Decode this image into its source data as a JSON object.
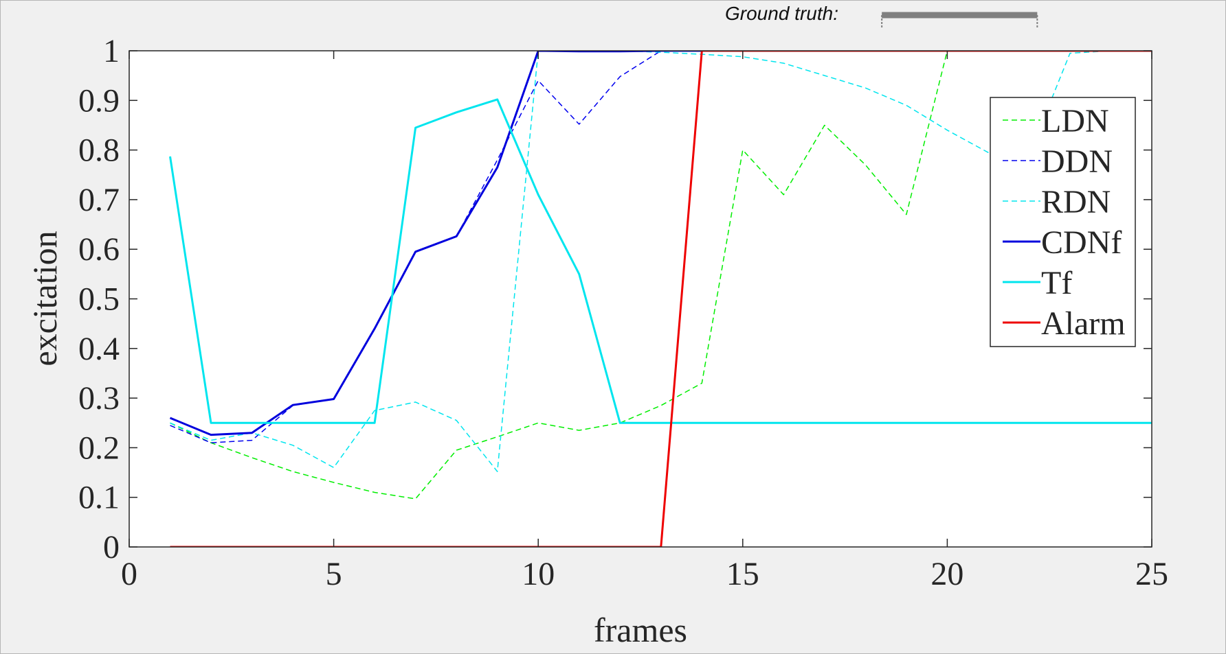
{
  "figure": {
    "ground_truth_label": "Ground truth:"
  },
  "chart_data": {
    "type": "line",
    "xlabel": "frames",
    "ylabel": "excitation",
    "xlim": [
      0,
      25
    ],
    "ylim": [
      0,
      1
    ],
    "xticks": [
      0,
      5,
      10,
      15,
      20,
      25
    ],
    "xtick_labels": [
      "0",
      "5",
      "10",
      "15",
      "20",
      "25"
    ],
    "yticks": [
      0,
      0.1,
      0.2,
      0.3,
      0.4,
      0.5,
      0.6,
      0.7,
      0.8,
      0.9,
      1
    ],
    "ytick_labels": [
      "0",
      "0.1",
      "0.2",
      "0.3",
      "0.4",
      "0.5",
      "0.6",
      "0.7",
      "0.8",
      "0.9",
      "1"
    ],
    "grid": false,
    "legend_position": "top-right",
    "ground_truth_bar": {
      "x_start": 18.4,
      "x_end": 22.2
    },
    "series": [
      {
        "name": "LDN",
        "color": "#00ee00",
        "style": "dashed",
        "width": 1.5,
        "x": [
          1,
          2,
          3,
          4,
          5,
          6,
          7,
          8,
          9,
          10,
          11,
          12,
          13,
          14,
          15,
          16,
          17,
          18,
          19,
          20,
          21,
          22,
          23,
          24,
          25
        ],
        "values": [
          0.25,
          0.21,
          0.18,
          0.152,
          0.13,
          0.11,
          0.097,
          0.195,
          0.222,
          0.25,
          0.235,
          0.25,
          0.285,
          0.33,
          0.8,
          0.71,
          0.85,
          0.77,
          0.67,
          1.0,
          1.0,
          1.0,
          1.0,
          1.0,
          1.0
        ]
      },
      {
        "name": "DDN",
        "color": "#0000ee",
        "style": "dashed",
        "width": 1.5,
        "x": [
          1,
          2,
          3,
          4,
          5,
          6,
          7,
          8,
          9,
          10,
          11,
          12,
          13,
          14,
          15,
          16,
          17,
          18,
          19,
          20,
          21,
          22,
          23,
          24,
          25
        ],
        "values": [
          0.245,
          0.21,
          0.215,
          0.285,
          0.298,
          0.44,
          0.595,
          0.626,
          0.78,
          0.94,
          0.852,
          0.948,
          1.0,
          1.0,
          1.0,
          1.0,
          1.0,
          1.0,
          1.0,
          1.0,
          1.0,
          1.0,
          1.0,
          1.0,
          1.0
        ]
      },
      {
        "name": "RDN",
        "color": "#00e5ee",
        "style": "dashed",
        "width": 1.5,
        "x": [
          1,
          2,
          3,
          4,
          5,
          6,
          7,
          8,
          9,
          10,
          11,
          12,
          13,
          14,
          15,
          16,
          17,
          18,
          19,
          20,
          21,
          22,
          23,
          24,
          25
        ],
        "values": [
          0.25,
          0.215,
          0.23,
          0.205,
          0.16,
          0.275,
          0.292,
          0.255,
          0.152,
          1.0,
          1.0,
          1.0,
          0.997,
          0.993,
          0.988,
          0.975,
          0.95,
          0.925,
          0.89,
          0.84,
          0.795,
          0.79,
          0.995,
          1.0,
          1.0
        ]
      },
      {
        "name": "CDNf",
        "color": "#0000dd",
        "style": "solid",
        "width": 3,
        "x": [
          1,
          2,
          3,
          4,
          5,
          6,
          7,
          8,
          9,
          10,
          11,
          12,
          13,
          14,
          15,
          16,
          17,
          18,
          19,
          20,
          21,
          22,
          23,
          24,
          25
        ],
        "values": [
          0.26,
          0.226,
          0.23,
          0.286,
          0.298,
          0.44,
          0.595,
          0.626,
          0.765,
          1.0,
          0.999,
          0.999,
          1.0,
          1.0,
          1.0,
          1.0,
          1.0,
          1.0,
          1.0,
          1.0,
          1.0,
          1.0,
          1.0,
          1.0,
          1.0
        ]
      },
      {
        "name": "Tf",
        "color": "#00e5ee",
        "style": "solid",
        "width": 3,
        "x": [
          1,
          2,
          3,
          4,
          5,
          6,
          7,
          8,
          9,
          10,
          11,
          12,
          13,
          14,
          15,
          16,
          17,
          18,
          19,
          20,
          21,
          22,
          23,
          24,
          25
        ],
        "values": [
          0.787,
          0.25,
          0.25,
          0.25,
          0.25,
          0.25,
          0.845,
          0.876,
          0.902,
          0.71,
          0.55,
          0.25,
          0.25,
          0.25,
          0.25,
          0.25,
          0.25,
          0.25,
          0.25,
          0.25,
          0.25,
          0.25,
          0.25,
          0.25,
          0.25
        ]
      },
      {
        "name": "Alarm",
        "color": "#ee0000",
        "style": "solid",
        "width": 3,
        "x": [
          1,
          2,
          3,
          4,
          5,
          6,
          7,
          8,
          9,
          10,
          11,
          12,
          13,
          14,
          15,
          16,
          17,
          18,
          19,
          20,
          21,
          22,
          23,
          24,
          25
        ],
        "values": [
          0,
          0,
          0,
          0,
          0,
          0,
          0,
          0,
          0,
          0,
          0,
          0,
          0,
          1,
          1,
          1,
          1,
          1,
          1,
          1,
          1,
          1,
          1,
          1,
          1
        ]
      }
    ]
  }
}
